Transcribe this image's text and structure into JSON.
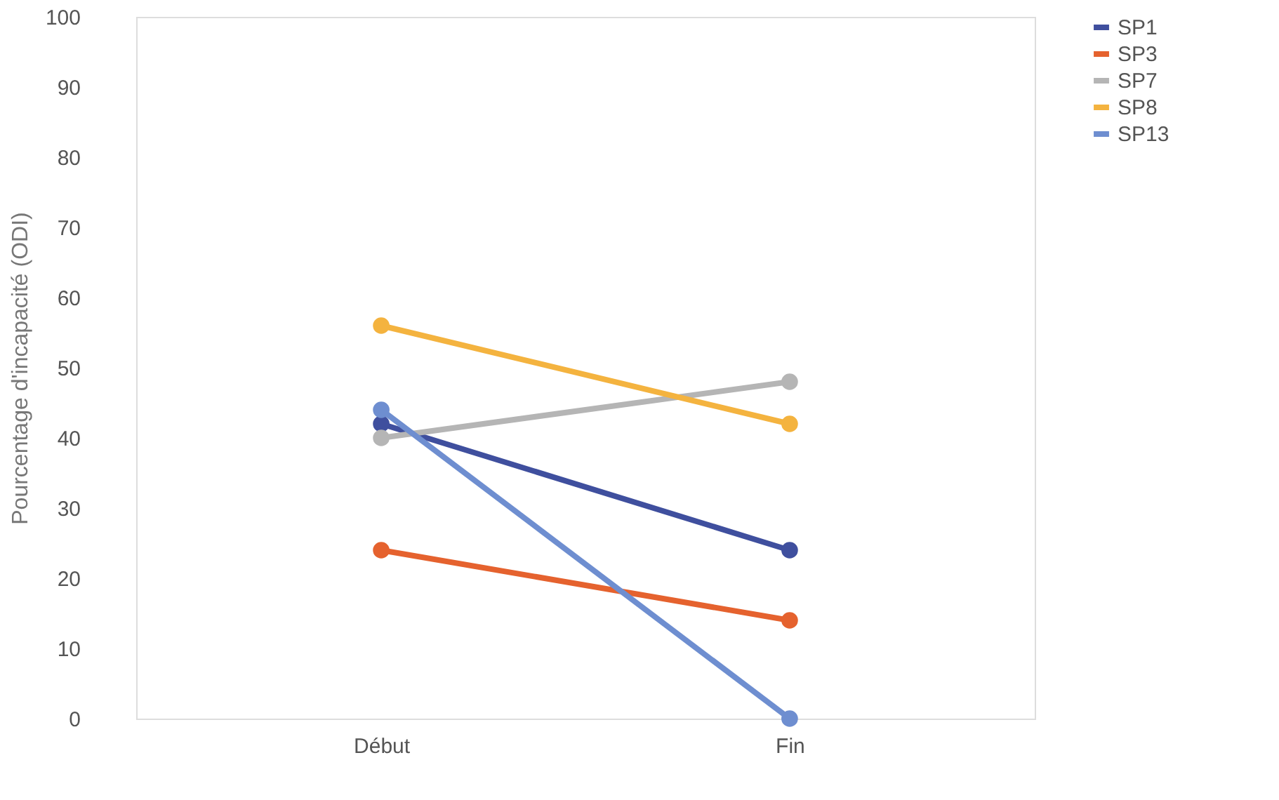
{
  "chart_data": {
    "type": "line",
    "ylabel": "Pourcentage d'incapacité (ODI)",
    "categories": [
      "Début",
      "Fin"
    ],
    "series": [
      {
        "name": "SP1",
        "color": "#3f4f9e",
        "values": [
          42,
          24
        ]
      },
      {
        "name": "SP3",
        "color": "#e5622e",
        "values": [
          24,
          14
        ]
      },
      {
        "name": "SP7",
        "color": "#b5b5b5",
        "values": [
          40,
          48
        ]
      },
      {
        "name": "SP8",
        "color": "#f4b33f",
        "values": [
          56,
          42
        ]
      },
      {
        "name": "SP13",
        "color": "#6e8ed0",
        "values": [
          44,
          0
        ]
      }
    ],
    "ylim": [
      0,
      100
    ],
    "yticks": [
      0,
      10,
      20,
      30,
      40,
      50,
      60,
      70,
      80,
      90,
      100
    ],
    "grid": false,
    "legend": "right",
    "marker": "circle",
    "line_style": "solid"
  }
}
